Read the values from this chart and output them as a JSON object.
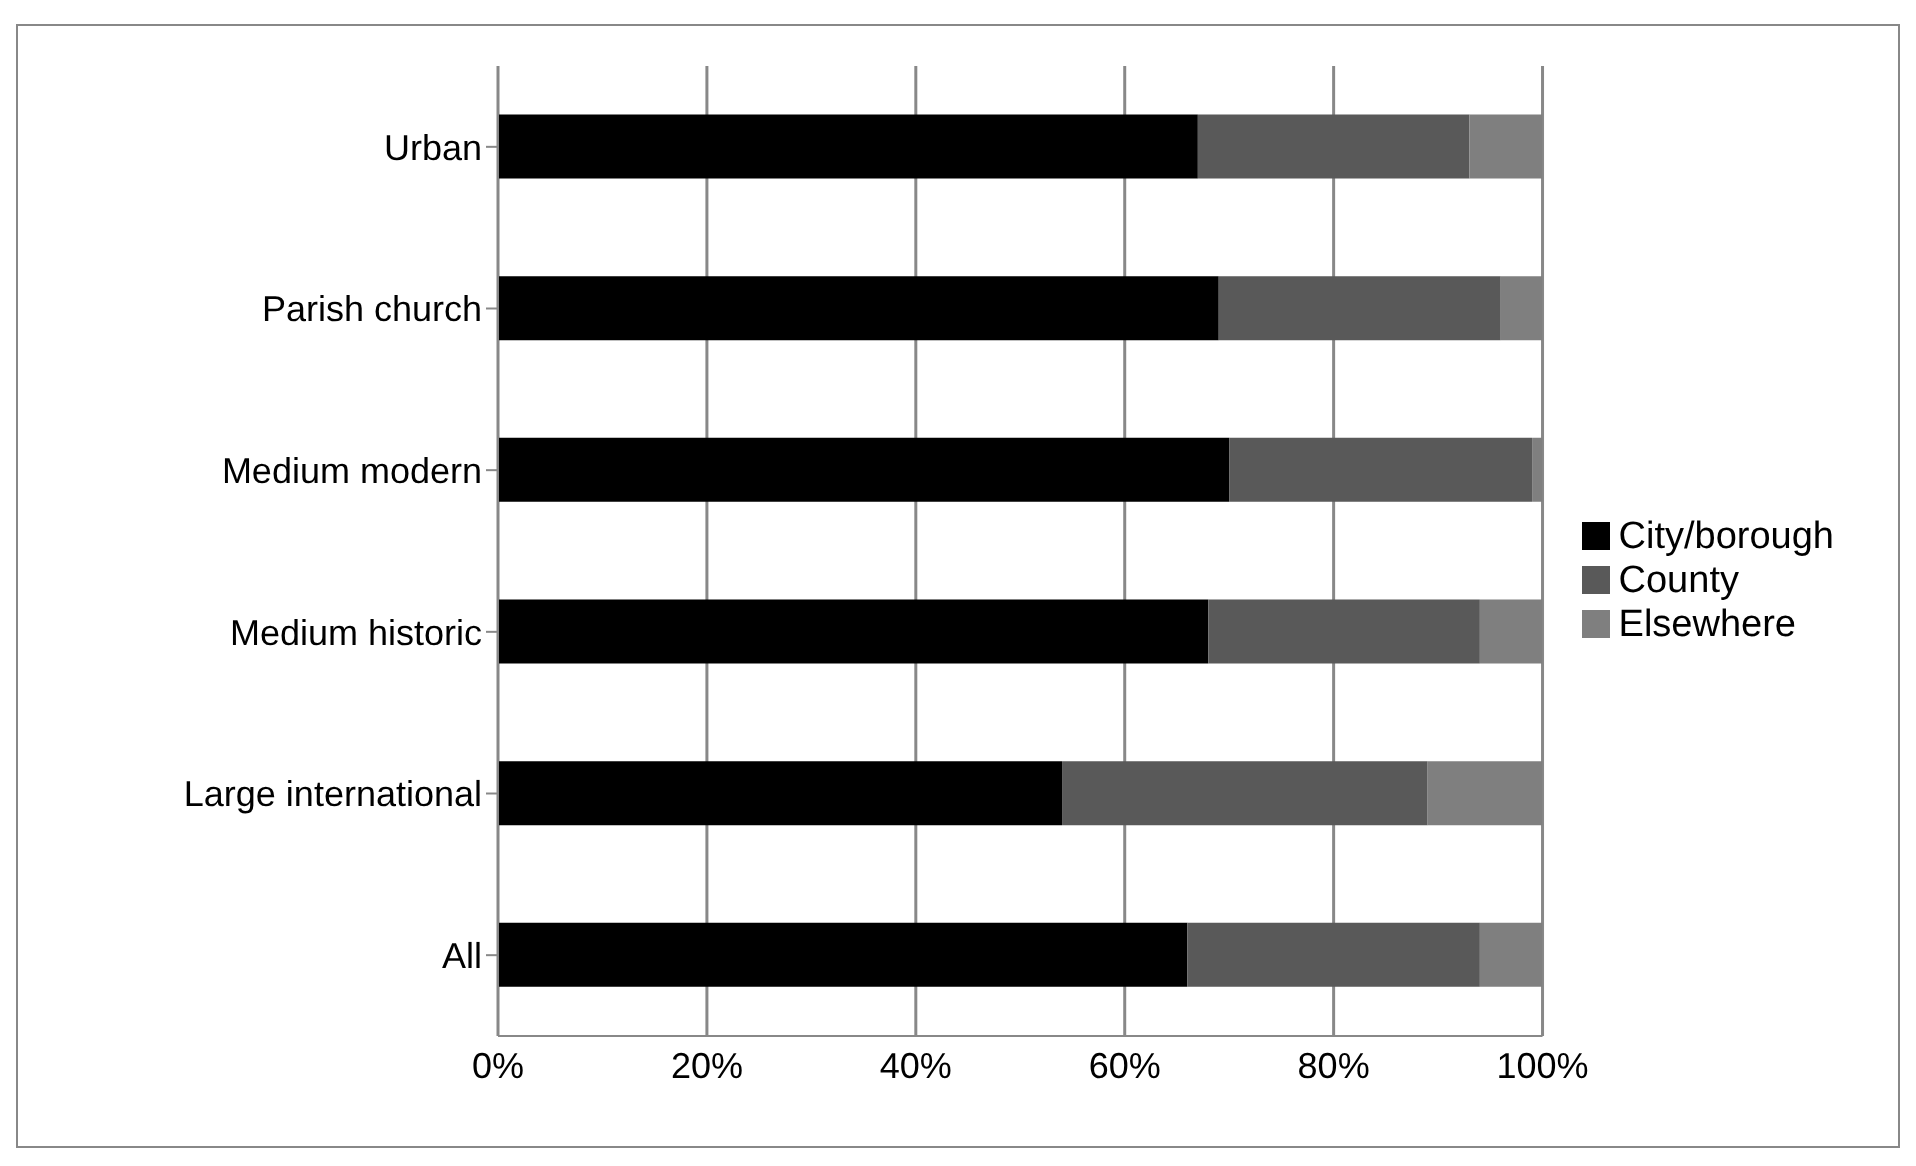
{
  "chart_data": {
    "type": "bar",
    "orientation": "horizontal",
    "stacked": true,
    "categories": [
      "Urban",
      "Parish church",
      "Medium modern",
      "Medium historic",
      "Large international",
      "All"
    ],
    "series": [
      {
        "name": "City/borough",
        "color": "#000000",
        "values": [
          67,
          69,
          70,
          68,
          54,
          66
        ]
      },
      {
        "name": "County",
        "color": "#595959",
        "values": [
          26,
          27,
          29,
          26,
          35,
          28
        ]
      },
      {
        "name": "Elsewhere",
        "color": "#7f7f7f",
        "values": [
          7,
          4,
          1,
          6,
          11,
          6
        ]
      }
    ],
    "xlim": [
      0,
      100
    ],
    "xticks": [
      {
        "value": 0,
        "label": "0%"
      },
      {
        "value": 20,
        "label": "20%"
      },
      {
        "value": 40,
        "label": "40%"
      },
      {
        "value": 60,
        "label": "60%"
      },
      {
        "value": 80,
        "label": "80%"
      },
      {
        "value": 100,
        "label": "100%"
      }
    ],
    "grid": "x",
    "legend": "right"
  }
}
